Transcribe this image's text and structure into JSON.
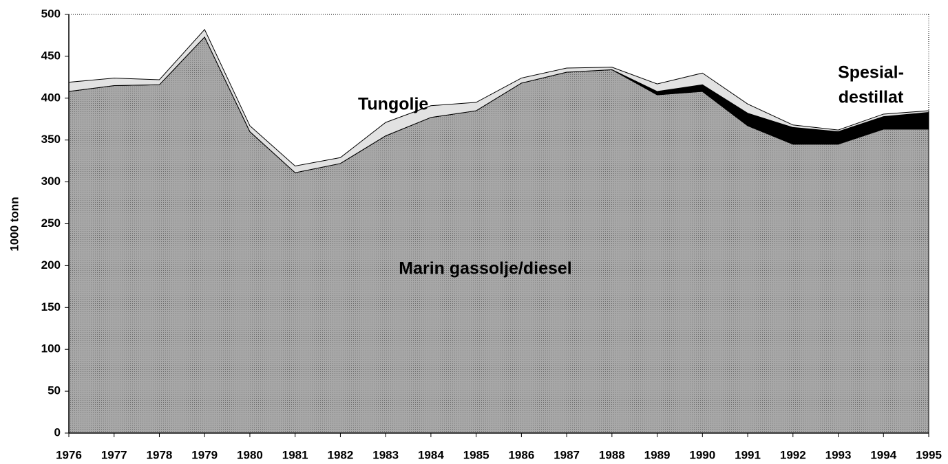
{
  "chart_data": {
    "type": "stacked_area",
    "y_label": "1000 tonn",
    "x": [
      1976,
      1977,
      1978,
      1979,
      1980,
      1981,
      1982,
      1983,
      1984,
      1985,
      1986,
      1987,
      1988,
      1989,
      1990,
      1991,
      1992,
      1993,
      1994,
      1995
    ],
    "series": [
      {
        "name": "Marin gassolje/diesel",
        "color": "#9e9e9e",
        "values": [
          408,
          415,
          416,
          473,
          360,
          311,
          322,
          355,
          377,
          385,
          418,
          431,
          434,
          404,
          408,
          367,
          345,
          345,
          363,
          363
        ]
      },
      {
        "name": "Spesial-destillat",
        "color": "#000000",
        "values": [
          0,
          0,
          0,
          0,
          0,
          0,
          0,
          0,
          0,
          0,
          0,
          0,
          0,
          4,
          8,
          15,
          20,
          15,
          15,
          20
        ]
      },
      {
        "name": "Tungolje",
        "color": "#e2e2e2",
        "values": [
          11,
          9,
          6,
          9,
          7,
          8,
          7,
          16,
          14,
          10,
          6,
          5,
          3,
          9,
          14,
          11,
          3,
          2,
          3,
          2
        ]
      }
    ],
    "annotations": [
      "Tungolje",
      "Marin gassolje/diesel",
      "Spesial-",
      "destillat"
    ],
    "xlim": [
      1976,
      1995
    ],
    "xticks": [
      1976,
      1977,
      1978,
      1979,
      1980,
      1981,
      1982,
      1983,
      1984,
      1985,
      1986,
      1987,
      1988,
      1989,
      1990,
      1991,
      1992,
      1993,
      1994,
      1995
    ],
    "ylim": [
      0,
      500
    ],
    "yticks": [
      0,
      50,
      100,
      150,
      200,
      250,
      300,
      350,
      400,
      450,
      500
    ]
  }
}
